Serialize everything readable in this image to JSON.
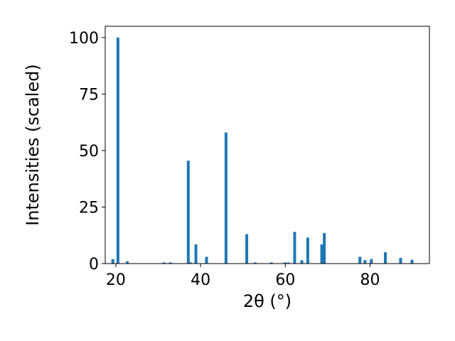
{
  "chart_data": {
    "type": "bar",
    "x_label": "2θ (°)",
    "y_label": "Intensities (scaled)",
    "x": [
      19.3,
      20.5,
      22.7,
      31.4,
      32.9,
      37.1,
      37.6,
      38.9,
      41.4,
      46.0,
      50.9,
      52.9,
      56.7,
      59.9,
      60.7,
      62.2,
      63.9,
      65.3,
      68.6,
      69.2,
      77.6,
      78.8,
      80.3,
      83.6,
      87.2,
      89.9
    ],
    "values": [
      2,
      100,
      1,
      0.5,
      0.5,
      45.5,
      0.5,
      8.5,
      3,
      58,
      13,
      0.5,
      0.5,
      0.5,
      0.5,
      14,
      1.5,
      11.5,
      8.5,
      13.5,
      3,
      1.5,
      2,
      5,
      2.5,
      1.7
    ],
    "color": "#1f77b4",
    "xlim": [
      17.5,
      94
    ],
    "xticks": [
      20,
      40,
      60,
      80
    ],
    "ylim": [
      0,
      105
    ],
    "yticks": [
      0,
      25,
      50,
      75,
      100
    ]
  }
}
